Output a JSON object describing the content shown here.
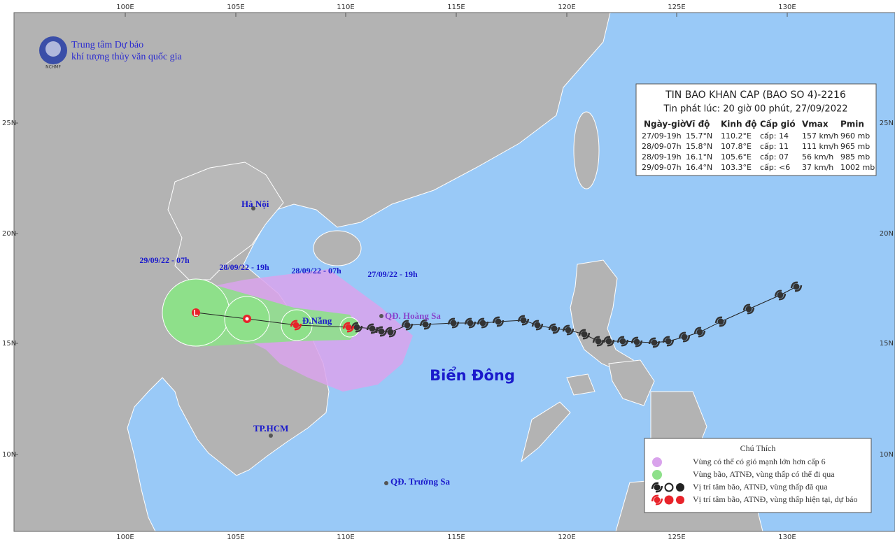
{
  "logo": {
    "line1": "Trung tâm Dự báo",
    "line2": "khí tượng thủy văn quốc gia",
    "badge": "NCHMF"
  },
  "map": {
    "lon_labels": [
      "100E",
      "105E",
      "110E",
      "115E",
      "120E",
      "125E",
      "130E"
    ],
    "lat_labels": [
      "25N",
      "20N",
      "15N",
      "10N"
    ]
  },
  "places": [
    "Hà Nội",
    "Đ.Nẵng",
    "QĐ. Hoàng Sa",
    "TP.HCM",
    "QĐ. Trường Sa"
  ],
  "sea_label": "Biển Đông",
  "forecast_times": [
    "29/09/22 - 07h",
    "28/09/22 - 19h",
    "28/09/22 - 07h",
    "27/09/22 - 19h"
  ],
  "info_box": {
    "title": "TIN BAO KHAN CAP  (BAO SO 4)-2216",
    "issued": "Tin phát lúc: 20 giờ 00 phút, 27/09/2022",
    "headers": [
      "Ngày-giờ",
      "Vĩ độ",
      "Kinh độ",
      "Cấp gió",
      "Vmax",
      "Pmin"
    ],
    "rows": [
      [
        "27/09-19h",
        "15.7°N",
        "110.2°E",
        "cấp: 14",
        "157 km/h",
        "960 mb"
      ],
      [
        "28/09-07h",
        "15.8°N",
        "107.8°E",
        "cấp: 11",
        "111 km/h",
        "965 mb"
      ],
      [
        "28/09-19h",
        "16.1°N",
        "105.6°E",
        "cấp: 07",
        "56 km/h",
        "985 mb"
      ],
      [
        "29/09-07h",
        "16.4°N",
        "103.3°E",
        "cấp: <6",
        "37 km/h",
        "1002 mb"
      ]
    ]
  },
  "legend": {
    "title": "Chú Thích",
    "items": [
      "Vùng có thể có gió mạnh lớn hơn cấp 6",
      "Vùng bão, ATNĐ, vùng thấp có thể đi qua",
      "Vị trí tâm bão, ATNĐ, vùng thấp đã qua",
      "Vị trí tâm bão, ATNĐ, vùng thấp hiện tại, dự báo"
    ]
  }
}
